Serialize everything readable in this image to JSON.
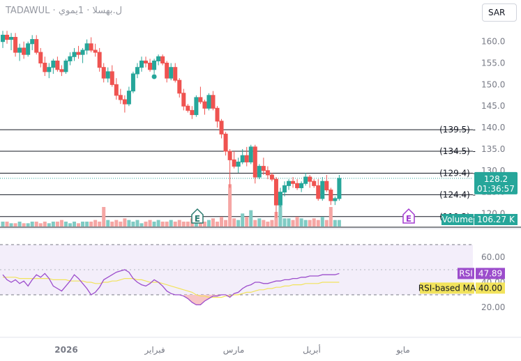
{
  "header": {
    "symbol_line": "TADAWUL · ل.بهسلا · 1يموي",
    "currency": "SAR"
  },
  "colors": {
    "up": "#26a69a",
    "down": "#ef5350",
    "up_vol": "#80cbc4",
    "down_vol": "#f5a6a4",
    "rsi": "#9c4dcc",
    "rsi_ma": "#f2e35c",
    "price_tag": "#26a69a"
  },
  "price_axis": {
    "ticks": [
      "160.0",
      "155.0",
      "150.0",
      "145.0",
      "140.0",
      "135.0",
      "130.0",
      "125.0",
      "120.0"
    ]
  },
  "levels": [
    "(139.5) -",
    "(134.5) -",
    "(129.4) -",
    "(124.4) -",
    "(119.3) -"
  ],
  "price_tag": {
    "price": "128.2",
    "countdown": "01:36:57"
  },
  "volume_tag": {
    "label": "Volume",
    "value": "106.27 K"
  },
  "rsi_axis": {
    "ticks": [
      "60.00",
      "40.00",
      "20.00"
    ]
  },
  "rsi_tags": {
    "rsi_label": "RSI",
    "rsi_value": "47.89",
    "ma_label": "RSI-based MA",
    "ma_value": "40.00"
  },
  "x_axis": {
    "ticks": [
      "2026",
      "فبراير",
      "مارس",
      "أبريل",
      "مايو"
    ]
  },
  "markers": {
    "earnings": "E"
  },
  "chart_data": {
    "type": "candlestick",
    "ylim": [
      117,
      164
    ],
    "levels": [
      139.5,
      134.5,
      129.4,
      124.4,
      119.3
    ],
    "last_price": 128.2,
    "ohlc": [
      [
        160.0,
        162.5,
        158.5,
        161.5
      ],
      [
        161.5,
        162.5,
        159.5,
        160.5
      ],
      [
        160.5,
        162.0,
        158.0,
        161.0
      ],
      [
        161.0,
        162.0,
        156.5,
        157.5
      ],
      [
        157.5,
        159.5,
        155.5,
        158.5
      ],
      [
        158.5,
        160.0,
        156.0,
        157.0
      ],
      [
        157.0,
        160.0,
        156.5,
        159.5
      ],
      [
        159.5,
        161.5,
        158.0,
        160.5
      ],
      [
        160.5,
        161.5,
        157.0,
        157.5
      ],
      [
        157.5,
        158.5,
        154.0,
        155.0
      ],
      [
        155.0,
        156.5,
        152.0,
        153.0
      ],
      [
        153.0,
        155.0,
        151.5,
        154.0
      ],
      [
        154.0,
        156.0,
        152.5,
        155.5
      ],
      [
        155.5,
        156.5,
        153.0,
        153.5
      ],
      [
        153.5,
        154.5,
        152.0,
        153.0
      ],
      [
        153.0,
        156.0,
        152.5,
        155.5
      ],
      [
        155.5,
        157.5,
        154.5,
        156.5
      ],
      [
        156.5,
        158.5,
        155.5,
        157.5
      ],
      [
        157.5,
        159.0,
        156.0,
        157.0
      ],
      [
        157.0,
        158.5,
        155.0,
        158.0
      ],
      [
        158.0,
        160.5,
        157.0,
        159.5
      ],
      [
        159.5,
        161.0,
        157.5,
        158.0
      ],
      [
        158.0,
        159.5,
        156.5,
        157.5
      ],
      [
        157.5,
        158.5,
        153.0,
        154.0
      ],
      [
        154.0,
        155.0,
        150.5,
        151.5
      ],
      [
        151.5,
        154.0,
        150.5,
        153.0
      ],
      [
        153.0,
        154.5,
        149.5,
        150.0
      ],
      [
        150.0,
        151.5,
        146.5,
        147.5
      ],
      [
        147.5,
        149.0,
        145.5,
        146.5
      ],
      [
        146.5,
        147.5,
        143.5,
        145.5
      ],
      [
        145.5,
        149.5,
        145.0,
        148.5
      ],
      [
        148.5,
        153.0,
        148.0,
        152.5
      ],
      [
        152.5,
        155.0,
        151.5,
        154.0
      ],
      [
        154.0,
        156.5,
        153.0,
        155.5
      ],
      [
        155.5,
        156.5,
        154.0,
        155.0
      ],
      [
        155.0,
        156.0,
        153.0,
        153.5
      ],
      [
        153.5,
        156.0,
        152.5,
        155.5
      ],
      [
        155.5,
        157.0,
        154.5,
        156.5
      ],
      [
        156.5,
        157.0,
        154.5,
        155.0
      ],
      [
        155.0,
        155.5,
        150.5,
        151.5
      ],
      [
        151.5,
        155.0,
        151.0,
        154.0
      ],
      [
        154.0,
        155.0,
        150.5,
        151.0
      ],
      [
        151.0,
        151.5,
        147.0,
        148.0
      ],
      [
        148.0,
        149.0,
        144.0,
        145.0
      ],
      [
        145.0,
        145.5,
        143.5,
        144.0
      ],
      [
        144.0,
        145.0,
        142.0,
        143.0
      ],
      [
        143.0,
        147.5,
        142.5,
        147.0
      ],
      [
        147.0,
        149.5,
        145.5,
        146.0
      ],
      [
        146.0,
        146.5,
        143.0,
        144.5
      ],
      [
        144.5,
        148.0,
        144.0,
        147.5
      ],
      [
        147.5,
        148.5,
        144.0,
        144.5
      ],
      [
        144.5,
        145.0,
        140.0,
        141.5
      ],
      [
        141.5,
        142.0,
        137.5,
        138.5
      ],
      [
        138.5,
        139.0,
        133.5,
        134.5
      ],
      [
        134.5,
        135.0,
        126.0,
        132.5
      ],
      [
        132.5,
        134.5,
        130.5,
        131.0
      ],
      [
        131.0,
        133.0,
        129.5,
        132.0
      ],
      [
        132.0,
        135.0,
        131.5,
        133.5
      ],
      [
        133.5,
        135.5,
        131.0,
        132.0
      ],
      [
        132.0,
        136.0,
        131.5,
        135.5
      ],
      [
        135.5,
        136.0,
        127.0,
        128.5
      ],
      [
        128.5,
        131.5,
        128.0,
        131.0
      ],
      [
        131.0,
        133.0,
        129.0,
        130.0
      ],
      [
        130.0,
        131.0,
        128.0,
        129.0
      ],
      [
        129.0,
        129.5,
        127.5,
        128.0
      ],
      [
        128.0,
        128.5,
        119.0,
        122.0
      ],
      [
        122.0,
        126.0,
        121.5,
        125.0
      ],
      [
        125.0,
        127.5,
        124.0,
        126.5
      ],
      [
        126.5,
        128.0,
        125.5,
        127.5
      ],
      [
        127.5,
        128.5,
        126.0,
        127.0
      ],
      [
        127.0,
        128.0,
        125.5,
        126.0
      ],
      [
        126.0,
        127.5,
        125.0,
        127.0
      ],
      [
        127.0,
        129.5,
        126.5,
        128.5
      ],
      [
        128.5,
        129.0,
        126.0,
        127.5
      ],
      [
        127.5,
        128.0,
        126.0,
        126.5
      ],
      [
        126.5,
        128.0,
        123.0,
        123.5
      ],
      [
        123.5,
        128.5,
        123.0,
        127.5
      ],
      [
        127.5,
        129.0,
        125.0,
        125.5
      ],
      [
        125.5,
        126.0,
        122.0,
        123.0
      ],
      [
        123.0,
        124.0,
        122.0,
        123.5
      ],
      [
        123.5,
        129.0,
        123.0,
        128.2
      ]
    ],
    "volume": [
      3,
      3,
      2,
      2,
      3,
      2,
      2,
      3,
      3,
      2,
      3,
      2,
      3,
      3,
      4,
      3,
      2,
      3,
      2,
      3,
      3,
      3,
      4,
      3,
      12,
      4,
      3,
      4,
      3,
      5,
      4,
      3,
      4,
      2,
      3,
      4,
      3,
      4,
      3,
      3,
      4,
      3,
      4,
      3,
      3,
      5,
      4,
      3,
      3,
      4,
      5,
      3,
      6,
      4,
      26,
      5,
      4,
      8,
      6,
      10,
      4,
      5,
      4,
      3,
      4,
      9,
      13,
      5,
      5,
      4,
      6,
      5,
      4,
      4,
      5,
      4,
      6,
      4,
      12,
      4,
      4
    ],
    "rsi": [
      46,
      42,
      40,
      42,
      39,
      41,
      37,
      42,
      46,
      44,
      47,
      43,
      37,
      35,
      33,
      37,
      41,
      46,
      43,
      39,
      35,
      30,
      32,
      36,
      42,
      44,
      46,
      48,
      49,
      50,
      48,
      43,
      40,
      38,
      37,
      39,
      42,
      40,
      37,
      33,
      31,
      30,
      30,
      29,
      27,
      24,
      22,
      22,
      25,
      27,
      29,
      29,
      30,
      30,
      28,
      31,
      32,
      35,
      37,
      38,
      40,
      40,
      39,
      39,
      40,
      41,
      41,
      42,
      42,
      43,
      43,
      44,
      44,
      45,
      45,
      45,
      46,
      46,
      46,
      46,
      47
    ],
    "rsi_ma": [
      44,
      44,
      44,
      44,
      43,
      43,
      43,
      43,
      43,
      43,
      43,
      43,
      42,
      42,
      42,
      42,
      41,
      41,
      41,
      41,
      40,
      40,
      39,
      39,
      40,
      40,
      41,
      41,
      42,
      43,
      43,
      43,
      42,
      42,
      41,
      40,
      40,
      40,
      39,
      38,
      37,
      36,
      35,
      34,
      33,
      32,
      30,
      29,
      29,
      28,
      28,
      28,
      28,
      29,
      29,
      30,
      30,
      31,
      32,
      32,
      33,
      34,
      34,
      35,
      35,
      36,
      36,
      37,
      37,
      38,
      38,
      38,
      39,
      39,
      39,
      39,
      40,
      40,
      40,
      40,
      40
    ],
    "rsi_ylim": [
      15,
      75
    ],
    "rsi_bands": [
      70,
      30
    ]
  }
}
